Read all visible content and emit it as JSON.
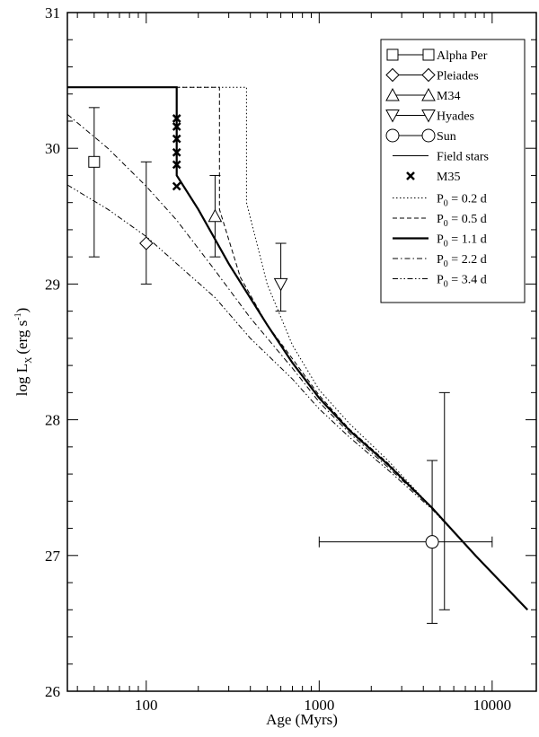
{
  "chart_data": {
    "type": "scatter",
    "title": "",
    "xlabel": "Age (Myrs)",
    "ylabel_main": "log L",
    "ylabel_sub": "X",
    "ylabel_unit": "(erg s",
    "ylabel_sup": "-1",
    "ylabel_close": ")",
    "x_scale": "log",
    "xlim": [
      35,
      18000
    ],
    "ylim": [
      26,
      31
    ],
    "x_ticks": [
      100,
      1000,
      10000
    ],
    "x_tick_labels": [
      "100",
      "1000",
      "10000"
    ],
    "y_ticks": [
      26,
      27,
      28,
      29,
      30,
      31
    ],
    "y_tick_labels": [
      "26",
      "27",
      "28",
      "29",
      "30",
      "31"
    ],
    "grid": false,
    "legend_position": "top-right",
    "clusters": [
      {
        "name": "Alpha Per",
        "marker": "square",
        "x": 50,
        "y": 29.9,
        "y_err": [
          29.2,
          30.3
        ]
      },
      {
        "name": "Pleiades",
        "marker": "diamond",
        "x": 100,
        "y": 29.3,
        "y_err": [
          29.0,
          29.9
        ]
      },
      {
        "name": "M34",
        "marker": "triangle-up",
        "x": 250,
        "y": 29.5,
        "y_err": [
          29.2,
          29.8
        ]
      },
      {
        "name": "Hyades",
        "marker": "triangle-down",
        "x": 600,
        "y": 29.0,
        "y_err": [
          28.8,
          29.3
        ]
      },
      {
        "name": "Sun",
        "marker": "circle",
        "x": 4500,
        "y": 27.1,
        "y_err": [
          26.5,
          27.7
        ],
        "x_err": [
          1000,
          10000
        ]
      }
    ],
    "field_stars": {
      "name": "Field stars",
      "x": 5300,
      "y_err": [
        26.6,
        28.2
      ]
    },
    "m35": {
      "name": "M35",
      "x": 150,
      "y": [
        29.72,
        29.88,
        29.97,
        30.07,
        30.16,
        30.22
      ]
    },
    "models": [
      {
        "name_main": "P",
        "name_sub": "0",
        "name_rest": " = 0.2 d",
        "style": "dotted",
        "x": [
          35,
          380,
          380,
          500,
          700,
          1000,
          1500,
          2500,
          4500,
          8000,
          16000
        ],
        "y": [
          30.45,
          30.45,
          29.6,
          29.0,
          28.55,
          28.22,
          27.97,
          27.7,
          27.35,
          27.0,
          26.6
        ]
      },
      {
        "name_main": "P",
        "name_sub": "0",
        "name_rest": " = 0.5 d",
        "style": "dashed",
        "x": [
          35,
          265,
          265,
          350,
          500,
          700,
          1000,
          1500,
          2500,
          4500,
          8000,
          16000
        ],
        "y": [
          30.45,
          30.45,
          29.55,
          29.05,
          28.7,
          28.45,
          28.18,
          27.93,
          27.68,
          27.35,
          27.0,
          26.6
        ]
      },
      {
        "name_main": "P",
        "name_sub": "0",
        "name_rest": " = 1.1 d",
        "style": "solid-thick",
        "x": [
          35,
          150,
          150,
          200,
          300,
          500,
          700,
          1000,
          1500,
          2500,
          4500,
          8000,
          16000
        ],
        "y": [
          30.45,
          30.45,
          29.8,
          29.55,
          29.15,
          28.7,
          28.42,
          28.16,
          27.92,
          27.67,
          27.35,
          27.0,
          26.6
        ]
      },
      {
        "name_main": "P",
        "name_sub": "0",
        "name_rest": " = 2.2 d",
        "style": "dash-dot",
        "x": [
          35,
          60,
          100,
          150,
          250,
          400,
          700,
          1000,
          1500,
          2500,
          4500,
          8000,
          16000
        ],
        "y": [
          30.25,
          30.0,
          29.72,
          29.47,
          29.1,
          28.75,
          28.38,
          28.13,
          27.9,
          27.65,
          27.35,
          27.0,
          26.6
        ]
      },
      {
        "name_main": "P",
        "name_sub": "0",
        "name_rest": " = 3.4 d",
        "style": "dash-dot-dot",
        "x": [
          35,
          60,
          100,
          150,
          250,
          400,
          700,
          1000,
          1500,
          2500,
          4500,
          8000,
          16000
        ],
        "y": [
          29.73,
          29.55,
          29.35,
          29.15,
          28.9,
          28.6,
          28.3,
          28.08,
          27.87,
          27.63,
          27.34,
          27.0,
          26.6
        ]
      }
    ]
  }
}
